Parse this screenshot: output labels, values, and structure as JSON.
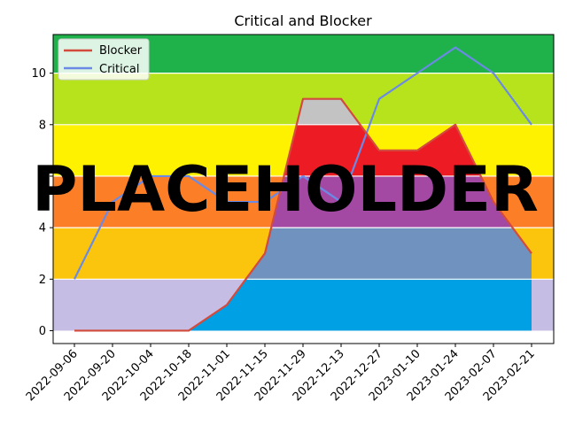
{
  "chart_data": {
    "type": "line",
    "title": "Critical and Blocker",
    "xlabel": "",
    "ylabel": "",
    "x": [
      "2022-09-06",
      "2022-09-20",
      "2022-10-04",
      "2022-10-18",
      "2022-11-01",
      "2022-11-15",
      "2022-11-29",
      "2022-12-13",
      "2022-12-27",
      "2023-01-10",
      "2023-01-24",
      "2023-02-07",
      "2023-02-21"
    ],
    "ylim": [
      -0.5,
      11.5
    ],
    "yticks": [
      0,
      2,
      4,
      6,
      8,
      10
    ],
    "grid": true,
    "legend_position": "top-left",
    "series": [
      {
        "name": "Blocker",
        "color": "#d24b3c",
        "values": [
          0,
          0,
          0,
          0,
          1,
          3,
          9,
          9,
          7,
          7,
          8,
          5,
          3
        ]
      },
      {
        "name": "Critical",
        "color": "#6a8ae6",
        "values": [
          2,
          5,
          6,
          6,
          5,
          5,
          6,
          5,
          9,
          10,
          11,
          10,
          8
        ]
      }
    ],
    "background_bands": [
      {
        "from": 0,
        "to": 2,
        "color": "#c5bde3"
      },
      {
        "from": 2,
        "to": 4,
        "color": "#fcc50d"
      },
      {
        "from": 4,
        "to": 6,
        "color": "#fc7f28"
      },
      {
        "from": 6,
        "to": 8,
        "color": "#fff200"
      },
      {
        "from": 8,
        "to": 10,
        "color": "#b7e31c"
      },
      {
        "from": 10,
        "to": 11.5,
        "color": "#20b24a"
      }
    ],
    "overlay_bands": [
      {
        "from": 0,
        "to": 2,
        "color": "#00a0e5"
      },
      {
        "from": 2,
        "to": 4,
        "color": "#7092be"
      },
      {
        "from": 4,
        "to": 6,
        "color": "#a349a4"
      },
      {
        "from": 6,
        "to": 8,
        "color": "#ed1c24"
      },
      {
        "from": 8,
        "to": 10,
        "color": "#c3c3c3"
      },
      {
        "from": 10,
        "to": 11.5,
        "color": "#20b24a"
      }
    ]
  },
  "watermark": "PLACEHOLDER"
}
